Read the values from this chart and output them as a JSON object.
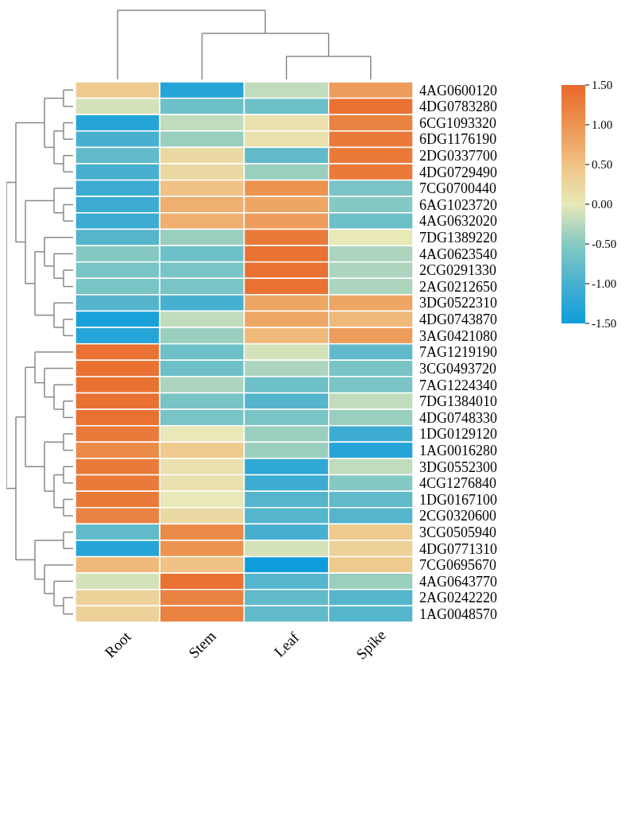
{
  "chart_data": {
    "type": "heatmap",
    "categories": [
      "Root",
      "Stem",
      "Leaf",
      "Spike"
    ],
    "y_categories": [
      "4AG0600120",
      "4DG0783280",
      "6CG1093320",
      "6DG1176190",
      "2DG0337700",
      "4DG0729490",
      "7CG0700440",
      "6AG1023720",
      "4AG0632020",
      "7DG1389220",
      "4AG0623540",
      "2CG0291330",
      "2AG0212650",
      "3DG0522310",
      "4DG0743870",
      "3AG0421080",
      "7AG1219190",
      "3CG0493720",
      "7AG1224340",
      "7DG1384010",
      "4DG0748330",
      "1DG0129120",
      "1AG0016280",
      "3DG0552300",
      "4CG1276840",
      "1DG0167100",
      "2CG0320600",
      "3CG0505940",
      "4DG0771310",
      "7CG0695670",
      "4AG0643770",
      "2AG0242220",
      "1AG0048570"
    ],
    "cells": [
      [
        0.4,
        -1.3,
        -0.2,
        0.9
      ],
      [
        -0.1,
        -0.7,
        -0.7,
        1.4
      ],
      [
        -1.3,
        -0.2,
        0.1,
        1.2
      ],
      [
        -1.0,
        -0.4,
        0.1,
        1.3
      ],
      [
        -0.8,
        0.2,
        -0.8,
        1.3
      ],
      [
        -1.0,
        0.2,
        -0.4,
        1.3
      ],
      [
        -1.1,
        0.5,
        1.0,
        -0.6
      ],
      [
        -1.1,
        0.7,
        0.8,
        -0.5
      ],
      [
        -1.1,
        0.7,
        0.9,
        -0.7
      ],
      [
        -0.9,
        -0.4,
        1.3,
        0.0
      ],
      [
        -0.5,
        -0.7,
        1.4,
        -0.3
      ],
      [
        -0.6,
        -0.6,
        1.4,
        -0.3
      ],
      [
        -0.6,
        -0.6,
        1.4,
        -0.3
      ],
      [
        -0.9,
        -1.0,
        0.8,
        0.8
      ],
      [
        -1.4,
        -0.2,
        0.8,
        0.6
      ],
      [
        -1.3,
        -0.4,
        0.6,
        0.9
      ],
      [
        1.4,
        -0.7,
        -0.1,
        -0.8
      ],
      [
        1.4,
        -0.7,
        -0.3,
        -0.6
      ],
      [
        1.4,
        -0.3,
        -0.7,
        -0.6
      ],
      [
        1.4,
        -0.6,
        -0.9,
        -0.2
      ],
      [
        1.4,
        -0.6,
        -0.6,
        -0.4
      ],
      [
        1.3,
        0.0,
        -0.4,
        -1.1
      ],
      [
        1.1,
        0.4,
        -0.4,
        -1.3
      ],
      [
        1.3,
        0.1,
        -1.2,
        -0.2
      ],
      [
        1.3,
        0.1,
        -1.1,
        -0.5
      ],
      [
        1.3,
        0.0,
        -0.9,
        -0.8
      ],
      [
        1.2,
        0.2,
        -0.9,
        -0.9
      ],
      [
        -0.8,
        1.1,
        -1.0,
        0.4
      ],
      [
        -1.3,
        1.0,
        -0.1,
        0.3
      ],
      [
        0.6,
        0.5,
        -1.5,
        0.4
      ],
      [
        -0.1,
        1.4,
        -0.9,
        -0.4
      ],
      [
        0.3,
        1.2,
        -0.8,
        -0.9
      ],
      [
        0.3,
        1.2,
        -0.8,
        -0.9
      ]
    ],
    "clim": [
      -1.5,
      1.5
    ],
    "cticks": [
      {
        "value": 1.5,
        "label": "1.50"
      },
      {
        "value": 1,
        "label": "1.00"
      },
      {
        "value": 0.5,
        "label": "0.50"
      },
      {
        "value": 0,
        "label": "0.00"
      },
      {
        "value": -0.5,
        "label": "-0.50"
      },
      {
        "value": -1,
        "label": "-1.00"
      },
      {
        "value": -1.5,
        "label": "-1.50"
      }
    ]
  }
}
